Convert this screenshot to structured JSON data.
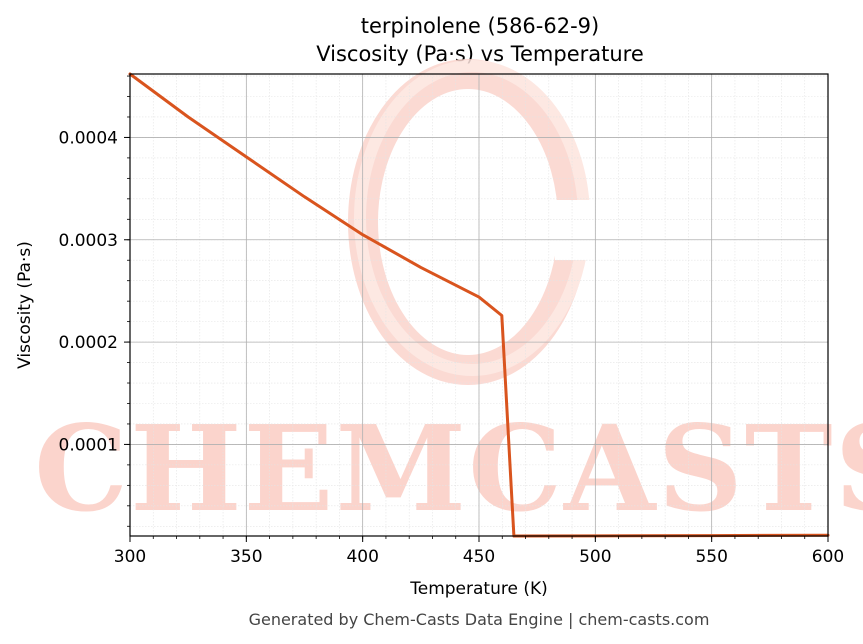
{
  "chart_data": {
    "type": "line",
    "title": "terpinolene (586-62-9)",
    "subtitle": "Viscosity (Pa·s) vs Temperature",
    "xlabel": "Temperature (K)",
    "ylabel": "Viscosity (Pa·s)",
    "xlim": [
      300,
      600
    ],
    "ylim": [
      1.05e-05,
      0.000462
    ],
    "x_ticks": [
      300,
      350,
      400,
      450,
      500,
      550,
      600
    ],
    "x_tick_labels": [
      "300",
      "350",
      "400",
      "450",
      "500",
      "550",
      "600"
    ],
    "y_ticks": [
      0.0001,
      0.0002,
      0.0003,
      0.0004
    ],
    "y_tick_labels": [
      "0.0001",
      "0.0002",
      "0.0003",
      "0.0004"
    ],
    "grid": true,
    "series_color": "#d9541e",
    "series": [
      {
        "x": [
          300,
          325,
          350,
          375,
          400,
          425,
          450,
          459.8,
          465,
          500,
          550,
          600
        ],
        "y": [
          0.000462,
          0.00042,
          0.000381,
          0.000342,
          0.000305,
          0.000273,
          0.000244,
          0.000226,
          1.05e-05,
          1.06e-05,
          1.09e-05,
          1.13e-05
        ]
      }
    ]
  },
  "watermark": {
    "text": "CHEMCASTS",
    "color": "#fbd4cc"
  },
  "footer": {
    "text": "Generated by Chem-Casts Data Engine | chem-casts.com"
  }
}
